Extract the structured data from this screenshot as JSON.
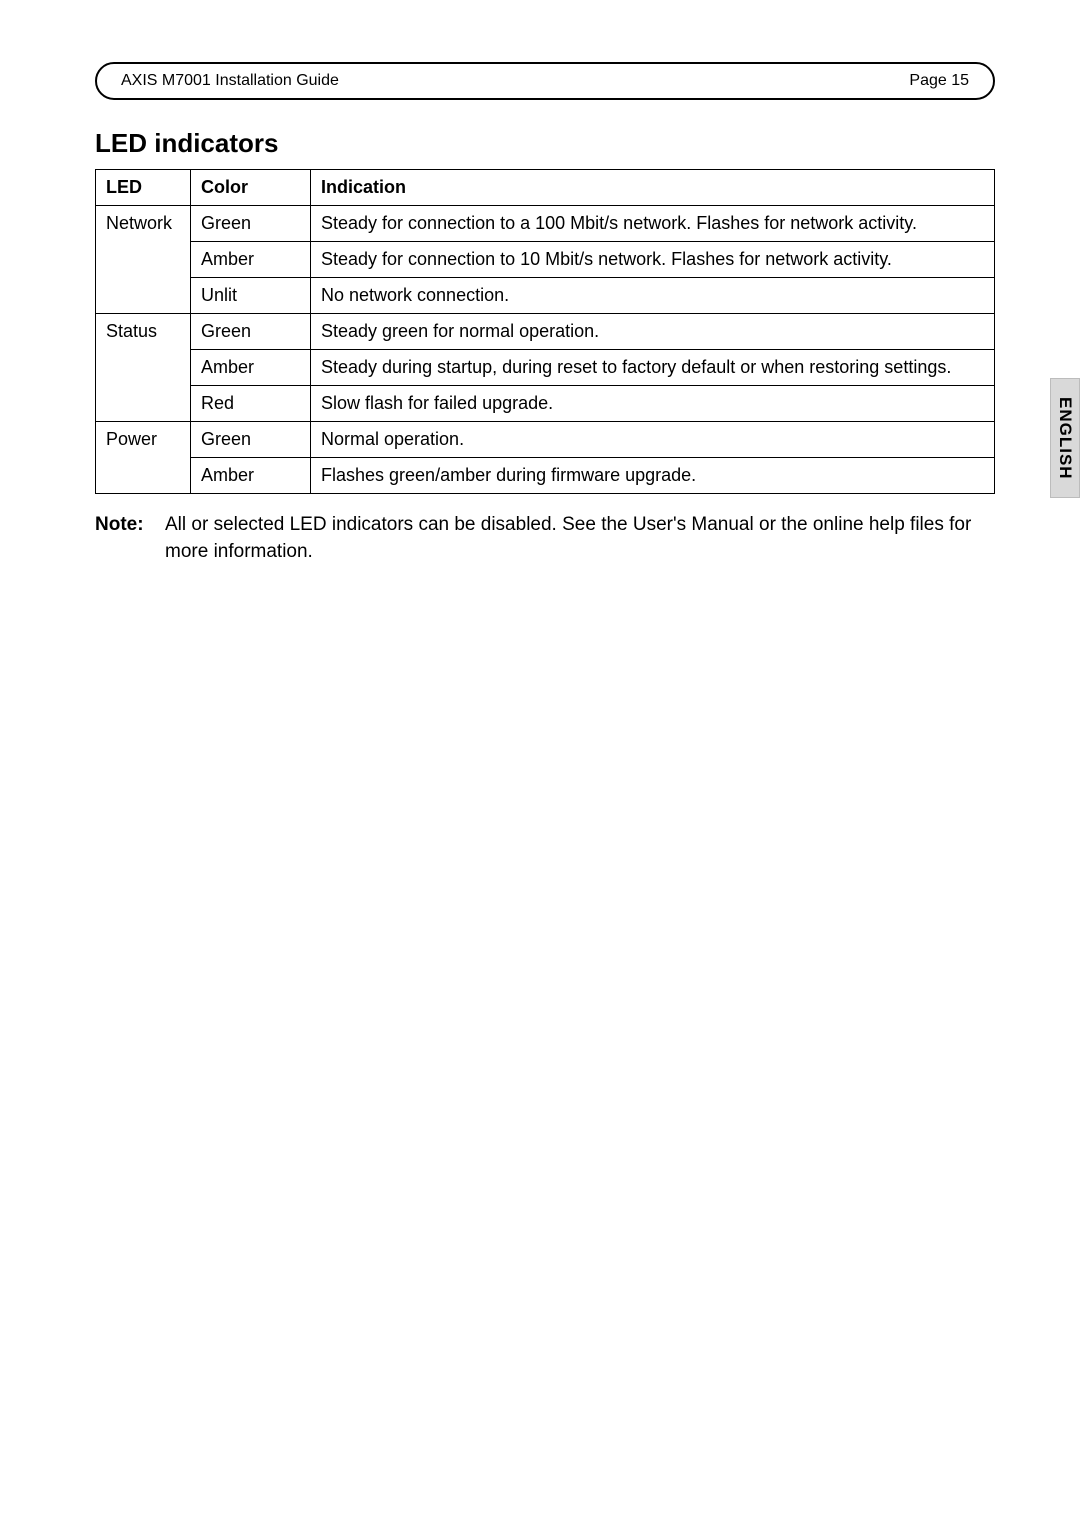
{
  "header": {
    "title": "AXIS M7001 Installation Guide",
    "page_label": "Page 15"
  },
  "section": {
    "heading": "LED indicators"
  },
  "table": {
    "columns": [
      "LED",
      "Color",
      "Indication"
    ],
    "groups": [
      {
        "led": "Network",
        "rows": [
          {
            "color": "Green",
            "indication": "Steady for connection to a 100 Mbit/s network. Flashes for network activity."
          },
          {
            "color": "Amber",
            "indication": "Steady for connection to 10 Mbit/s network. Flashes for network activity."
          },
          {
            "color": "Unlit",
            "indication": "No network connection."
          }
        ]
      },
      {
        "led": "Status",
        "rows": [
          {
            "color": "Green",
            "indication": "Steady green for normal operation."
          },
          {
            "color": "Amber",
            "indication": "Steady during startup, during reset to factory default or when restoring settings."
          },
          {
            "color": "Red",
            "indication": "Slow flash for failed upgrade."
          }
        ]
      },
      {
        "led": "Power",
        "rows": [
          {
            "color": "Green",
            "indication": "Normal operation."
          },
          {
            "color": "Amber",
            "indication": "Flashes green/amber during firmware upgrade."
          }
        ]
      }
    ]
  },
  "note": {
    "label": "Note:",
    "text": "All or selected LED indicators can be disabled. See the User's Manual or the online help files for more information."
  },
  "side_tab": {
    "label": "ENGLISH"
  },
  "styles": {
    "page_bg": "#ffffff",
    "text_color": "#000000",
    "border_color": "#000000",
    "tab_bg": "#d9d9d9",
    "tab_border": "#bcbcbc",
    "body_fontsize": 18,
    "heading_fontsize": 26,
    "header_fontsize": 19,
    "note_fontsize": 19
  }
}
